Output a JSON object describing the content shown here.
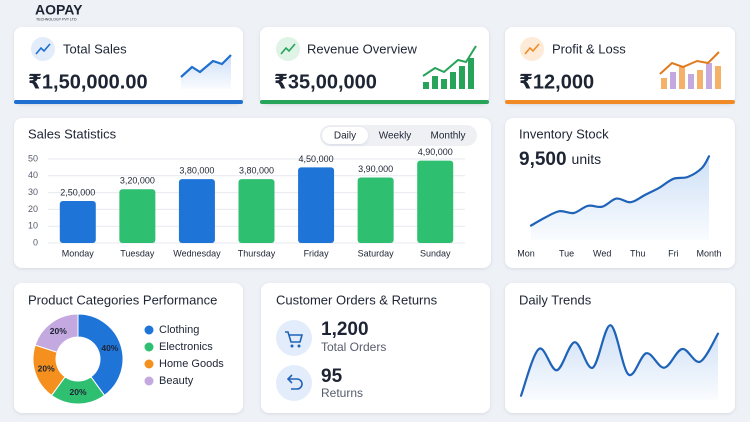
{
  "header": {
    "logo": "AOPAY",
    "tagline": "TECHNOLOGY PVT LTD"
  },
  "kpis": [
    {
      "title": "Total Sales",
      "value": "₹1,50,000.00",
      "color": "#1f6fd1"
    },
    {
      "title": "Revenue Overview",
      "value": "₹35,00,000",
      "color": "#27a35a"
    },
    {
      "title": "Profit & Loss",
      "value": "₹12,000",
      "color": "#f08a24"
    }
  ],
  "orders": {
    "title": "Customer Orders & Returns",
    "items": [
      {
        "value": "1,200",
        "label": "Total Orders"
      },
      {
        "value": "95",
        "label": "Returns"
      }
    ]
  },
  "chart_data": [
    {
      "type": "bar",
      "title": "Sales Statistics",
      "tabs": [
        "Daily",
        "Weekly",
        "Monthly"
      ],
      "active_tab": 0,
      "categories": [
        "Monday",
        "Tuesday",
        "Wednesday",
        "Thursday",
        "Friday",
        "Saturday",
        "Sunday"
      ],
      "values": [
        25,
        32,
        38,
        38,
        45,
        39,
        49
      ],
      "value_labels": [
        "2,50,000",
        "3,20,000",
        "3,80,000",
        "3,80,000",
        "4,50,000",
        "3,90,000",
        "4,90,000"
      ],
      "colors": [
        "#1f74d8",
        "#2fbf71",
        "#1f74d8",
        "#2fbf71",
        "#1f74d8",
        "#2fbf71",
        "#2fbf71"
      ],
      "ylim": [
        0,
        50
      ],
      "yticks": [
        0,
        10,
        20,
        30,
        40,
        50
      ],
      "grid": true
    },
    {
      "type": "line",
      "title": "Inventory Stock",
      "subtitle": "9,500",
      "subtitle_unit": "units",
      "x": [
        0,
        0.4,
        0.8,
        1.2,
        1.6,
        2,
        2.4,
        2.8,
        3.2,
        3.6,
        4,
        4.4,
        4.8,
        5
      ],
      "values": [
        16,
        25,
        32,
        30,
        38,
        37,
        46,
        42,
        50,
        58,
        68,
        70,
        80,
        93
      ],
      "xlim": [
        0,
        5
      ],
      "ylim": [
        0,
        100
      ],
      "xticks": [
        {
          "value": 0,
          "label": "Mon"
        },
        {
          "value": 1,
          "label": "Tue"
        },
        {
          "value": 2,
          "label": "Wed"
        },
        {
          "value": 3,
          "label": "Thu"
        },
        {
          "value": 4,
          "label": "Fri"
        },
        {
          "value": 5,
          "label": "Month"
        }
      ],
      "color": "#1f63b8",
      "area": true
    },
    {
      "type": "pie",
      "title": "Product Categories Performance",
      "categories": [
        "Clothing",
        "Electronics",
        "Home Goods",
        "Beauty"
      ],
      "values": [
        40,
        20,
        20,
        20
      ],
      "value_labels": [
        "40%",
        "20%",
        "20%",
        "20%"
      ],
      "colors": [
        "#1f74d8",
        "#2fbf71",
        "#f5901e",
        "#c4a8e0"
      ],
      "donut": true
    },
    {
      "type": "line",
      "title": "Daily Trends",
      "x": [
        0,
        1,
        2,
        3,
        4,
        5,
        6,
        7,
        8,
        9,
        10,
        11
      ],
      "values": [
        5,
        60,
        35,
        68,
        38,
        88,
        30,
        55,
        38,
        60,
        45,
        78
      ],
      "xlim": [
        0,
        11
      ],
      "ylim": [
        0,
        100
      ],
      "color": "#1f63b8",
      "area": true
    }
  ]
}
